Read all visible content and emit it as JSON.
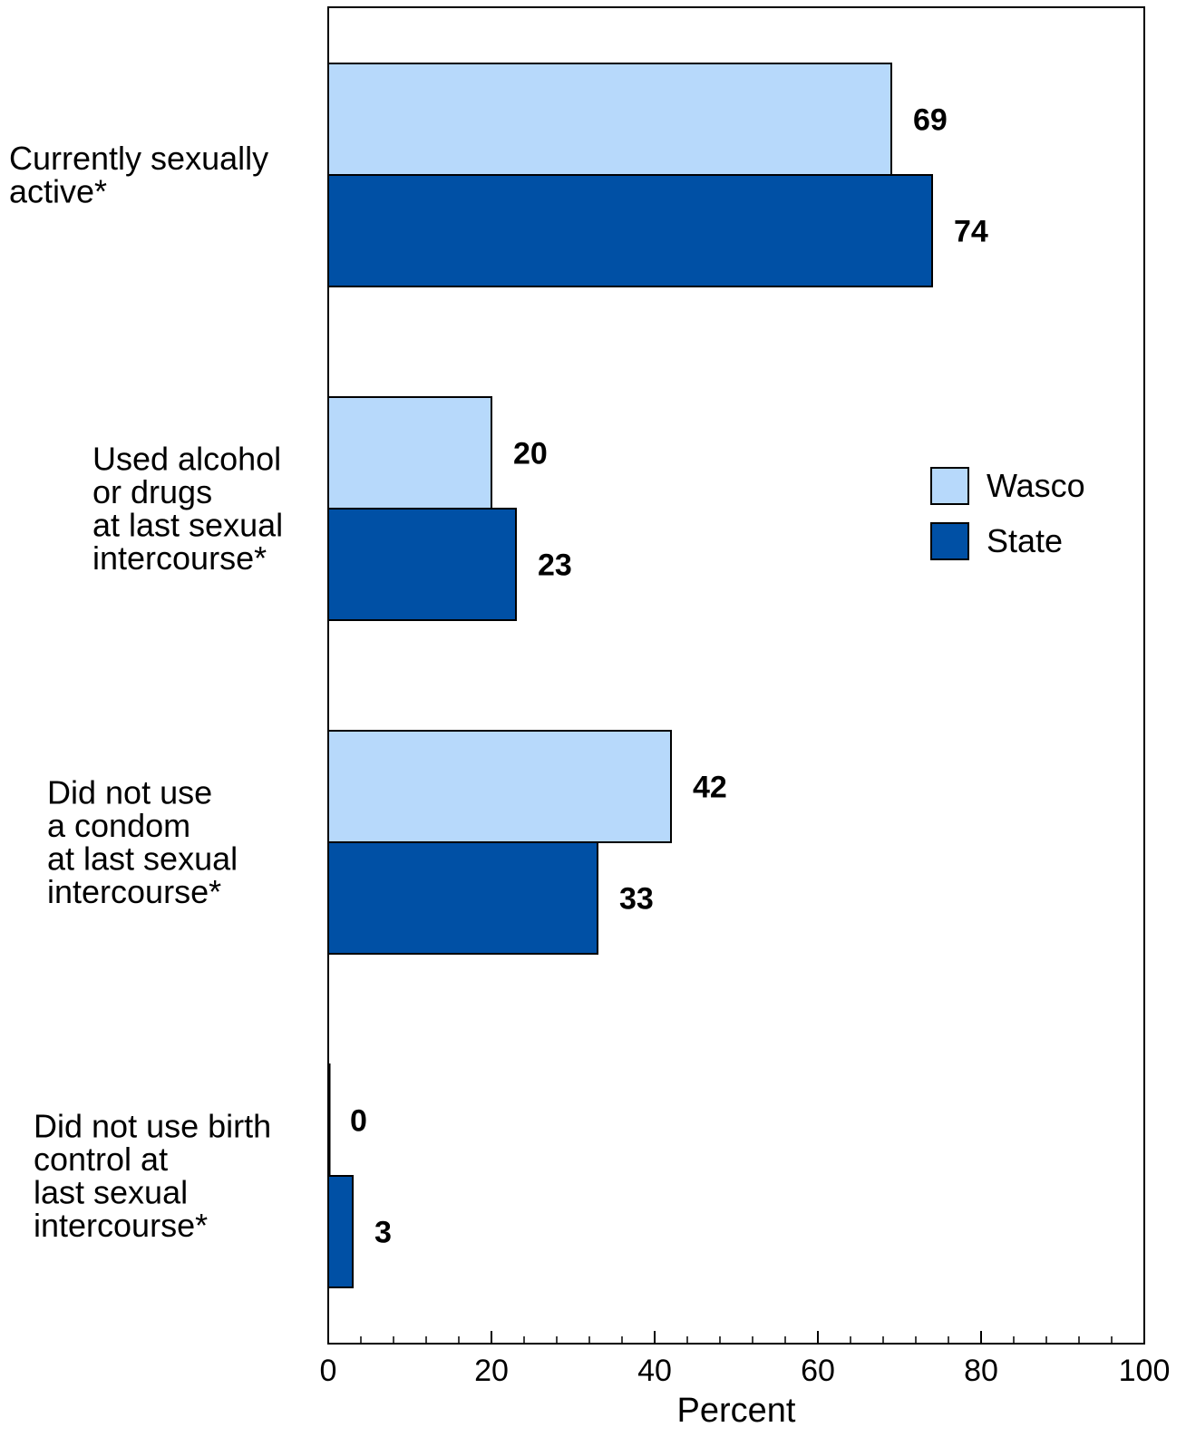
{
  "chart_data": {
    "type": "bar",
    "orientation": "horizontal",
    "categories": [
      [
        "Currently sexually",
        "active*"
      ],
      [
        "Used alcohol",
        "or drugs",
        "at last sexual",
        "intercourse*"
      ],
      [
        "Did not use",
        "a condom",
        "at last sexual",
        "intercourse*"
      ],
      [
        "Did not use birth",
        "control at",
        "last sexual",
        "intercourse*"
      ]
    ],
    "series": [
      {
        "name": "Wasco",
        "color": "#b7d9fb",
        "values": [
          69,
          20,
          42,
          0
        ]
      },
      {
        "name": "State",
        "color": "#0050a5",
        "values": [
          74,
          23,
          33,
          3
        ]
      }
    ],
    "xlabel": "Percent",
    "xlim": [
      0,
      100
    ],
    "xticks": [
      0,
      20,
      40,
      60,
      80,
      100
    ],
    "minor_tick_step": 4,
    "grid": false,
    "legend_position": "right-center"
  }
}
